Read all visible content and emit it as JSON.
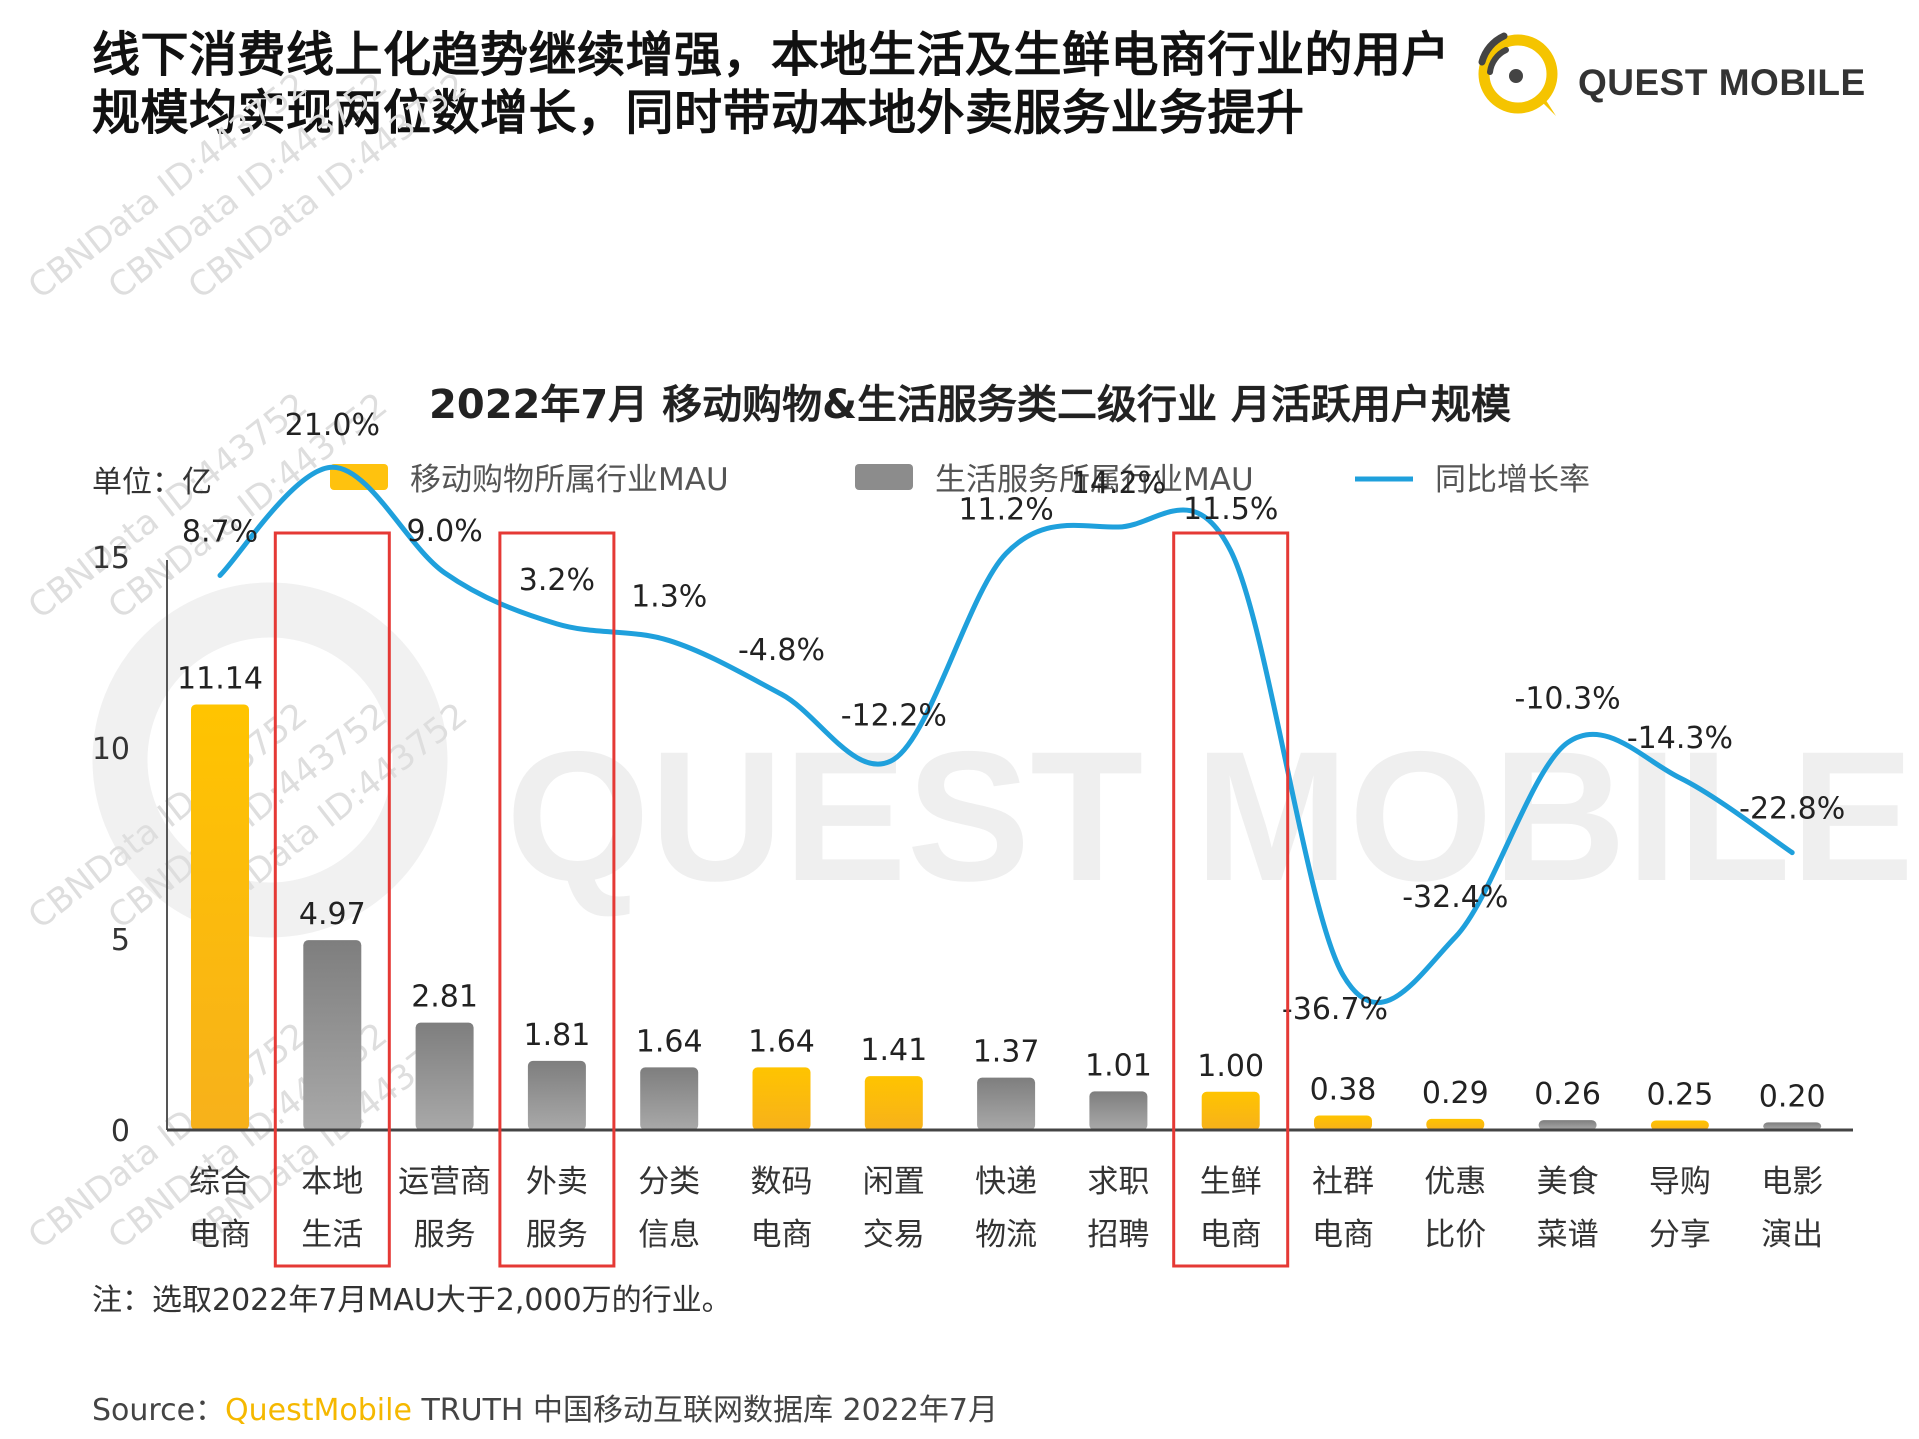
{
  "headline": {
    "line1": "线下消费线上化趋势继续增强，本地生活及生鲜电商行业的用户",
    "line2": "规模均实现两位数增长，同时带动本地外卖服务业务提升"
  },
  "logo": {
    "text": "QUEST MOBILE",
    "icon": "quest-mobile-logo-icon",
    "color": "#f5c400"
  },
  "watermark": {
    "text": "CBNData ID:443752",
    "background_text": "QUEST MOBILE"
  },
  "chart_data": {
    "type": "bar",
    "title": "2022年7月 移动购物&生活服务类二级行业 月活跃用户规模",
    "unit_label": "单位：亿",
    "ylim": [
      0,
      15
    ],
    "yticks": [
      "0",
      "5",
      "10",
      "15"
    ],
    "legend": [
      {
        "name": "移动购物所属行业MAU",
        "color": "#ffc20e",
        "kind": "bar"
      },
      {
        "name": "生活服务所属行业MAU",
        "color": "#8c8c8c",
        "kind": "bar"
      },
      {
        "name": "同比增长率",
        "color": "#1fa0dc",
        "kind": "line"
      }
    ],
    "categories": [
      [
        "综合",
        "电商"
      ],
      [
        "本地",
        "生活"
      ],
      [
        "运营商",
        "服务"
      ],
      [
        "外卖",
        "服务"
      ],
      [
        "分类",
        "信息"
      ],
      [
        "数码",
        "电商"
      ],
      [
        "闲置",
        "交易"
      ],
      [
        "快递",
        "物流"
      ],
      [
        "求职",
        "招聘"
      ],
      [
        "生鲜",
        "电商"
      ],
      [
        "社群",
        "电商"
      ],
      [
        "优惠",
        "比价"
      ],
      [
        "美食",
        "菜谱"
      ],
      [
        "导购",
        "分享"
      ],
      [
        "电影",
        "演出"
      ]
    ],
    "mau_values": [
      11.14,
      4.97,
      2.81,
      1.81,
      1.64,
      1.64,
      1.41,
      1.37,
      1.01,
      1.0,
      0.38,
      0.29,
      0.26,
      0.25,
      0.2
    ],
    "mau_labels": [
      "11.14",
      "4.97",
      "2.81",
      "1.81",
      "1.64",
      "1.64",
      "1.41",
      "1.37",
      "1.01",
      "1.00",
      "0.38",
      "0.29",
      "0.26",
      "0.25",
      "0.20"
    ],
    "bar_group": [
      "shopping",
      "life",
      "life",
      "life",
      "life",
      "shopping",
      "shopping",
      "life",
      "life",
      "shopping",
      "shopping",
      "shopping",
      "life",
      "shopping",
      "life"
    ],
    "growth_values": [
      8.7,
      21.0,
      9.0,
      3.2,
      1.3,
      -4.8,
      -12.2,
      11.2,
      14.2,
      11.5,
      -36.7,
      -32.4,
      -10.3,
      -14.3,
      -22.8
    ],
    "growth_labels": [
      "8.7%",
      "21.0%",
      "9.0%",
      "3.2%",
      "1.3%",
      "-4.8%",
      "-12.2%",
      "11.2%",
      "14.2%",
      "11.5%",
      "-36.7%",
      "-32.4%",
      "-10.3%",
      "-14.3%",
      "-22.8%"
    ],
    "highlighted_categories": [
      1,
      3,
      9
    ],
    "highlight_color": "#e53935"
  },
  "note": "注：选取2022年7月MAU大于2,000万的行业。",
  "source": {
    "prefix": "Source：",
    "brand": "QuestMobile",
    "rest": " TRUTH 中国移动互联网数据库 2022年7月"
  }
}
